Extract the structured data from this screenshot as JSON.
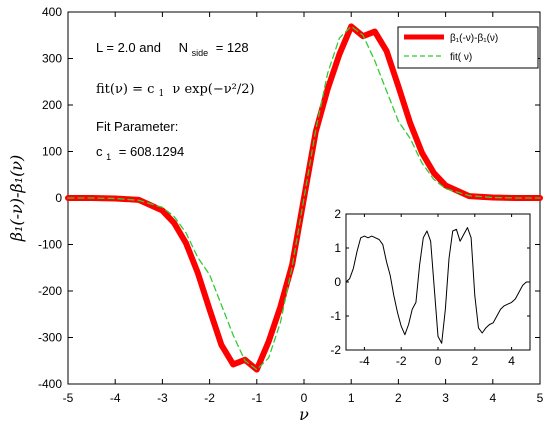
{
  "chart_data": [
    {
      "type": "line",
      "xlabel": "ν",
      "ylabel": "β₁(-ν)-β₁(ν)",
      "xlim": [
        -5,
        5
      ],
      "ylim": [
        -400,
        400
      ],
      "x_ticks": [
        "-5",
        "-4",
        "-3",
        "-2",
        "-1",
        "0",
        "1",
        "2",
        "3",
        "4",
        "5"
      ],
      "y_ticks": [
        "400",
        "300",
        "200",
        "100",
        "0",
        "-100",
        "-200",
        "-300",
        "-400"
      ],
      "grid": false,
      "legend": "top-right",
      "series": [
        {
          "name": "β₁(-ν)-β₁(ν)",
          "color": "#ff0000",
          "x": [
            -5,
            -4.5,
            -4,
            -3.5,
            -3,
            -2.75,
            -2.5,
            -2.25,
            -2,
            -1.75,
            -1.5,
            -1.25,
            -1,
            -0.75,
            -0.5,
            -0.25,
            0,
            0.25,
            0.5,
            0.75,
            1,
            1.25,
            1.5,
            1.75,
            2,
            2.25,
            2.5,
            2.75,
            3,
            3.5,
            4,
            4.5,
            5
          ],
          "y": [
            0,
            0,
            -1,
            -4,
            -27,
            -54,
            -97,
            -161,
            -240,
            -316,
            -358,
            -348,
            -369,
            -309,
            -234,
            -143,
            0,
            143,
            234,
            309,
            369,
            348,
            358,
            316,
            240,
            161,
            97,
            54,
            27,
            4,
            1,
            0,
            0
          ]
        },
        {
          "name": "fit( ν)",
          "color": "#33cc33",
          "x": [
            -5,
            -4.5,
            -4,
            -3.5,
            -3,
            -2.75,
            -2.5,
            -2.25,
            -2,
            -1.75,
            -1.5,
            -1.25,
            -1,
            -0.75,
            -0.5,
            -0.25,
            0,
            0.25,
            0.5,
            0.75,
            1,
            1.25,
            1.5,
            1.75,
            2,
            2.25,
            2.5,
            2.75,
            3,
            3.5,
            4,
            4.5,
            5
          ],
          "y": [
            0,
            0,
            -1,
            -5,
            -20,
            -40,
            -75,
            -128,
            -165,
            -230,
            -295,
            -350,
            -369,
            -344,
            -268,
            -147,
            0,
            147,
            268,
            344,
            369,
            350,
            295,
            230,
            165,
            128,
            75,
            40,
            20,
            5,
            1,
            0,
            0
          ]
        }
      ],
      "annotations": {
        "line1_a": "L = 2.0  and",
        "line1_b": "N",
        "line1_sub": "side",
        "line1_c": "= 128",
        "fit_formula_lhs": "fit(ν) = c",
        "fit_formula_sub": "1",
        "fit_formula_rhs": "ν exp(−ν²/2)",
        "fit_param_title": "Fit Parameter:",
        "fit_param_c": "c",
        "fit_param_sub": "1",
        "fit_param_value": "= 608.1294"
      }
    },
    {
      "type": "line",
      "xlim": [
        -5,
        5
      ],
      "ylim": [
        -2,
        2
      ],
      "x_ticks": [
        "-4",
        "-2",
        "0",
        "2",
        "4"
      ],
      "y_ticks": [
        "2",
        "1",
        "0",
        "-1",
        "-2"
      ],
      "grid": false,
      "series": [
        {
          "color": "#000000",
          "x": [
            -5,
            -4.8,
            -4.6,
            -4.4,
            -4.2,
            -4,
            -3.8,
            -3.6,
            -3.4,
            -3.2,
            -3,
            -2.8,
            -2.6,
            -2.4,
            -2.2,
            -2,
            -1.8,
            -1.6,
            -1.4,
            -1.2,
            -1,
            -0.8,
            -0.6,
            -0.4,
            -0.2,
            0,
            0.2,
            0.4,
            0.6,
            0.8,
            1,
            1.2,
            1.4,
            1.6,
            1.8,
            2,
            2.2,
            2.4,
            2.6,
            2.8,
            3,
            3.2,
            3.4,
            3.6,
            3.8,
            4,
            4.2,
            4.4,
            4.6,
            4.8,
            5
          ],
          "y": [
            0,
            0.1,
            0.4,
            0.9,
            1.3,
            1.35,
            1.3,
            1.35,
            1.3,
            1.25,
            1.1,
            0.6,
            0.2,
            -0.4,
            -0.9,
            -1.3,
            -1.55,
            -1.25,
            -0.8,
            -0.6,
            0.5,
            1.3,
            1.5,
            1.2,
            -0.2,
            -1.6,
            -1.8,
            -0.8,
            0.7,
            1.5,
            1.55,
            1.2,
            1.4,
            1.6,
            1.3,
            -0.4,
            -1.35,
            -1.5,
            -1.35,
            -1.25,
            -1.2,
            -1.0,
            -0.8,
            -0.7,
            -0.65,
            -0.6,
            -0.5,
            -0.3,
            -0.1,
            0,
            0
          ]
        }
      ]
    }
  ]
}
